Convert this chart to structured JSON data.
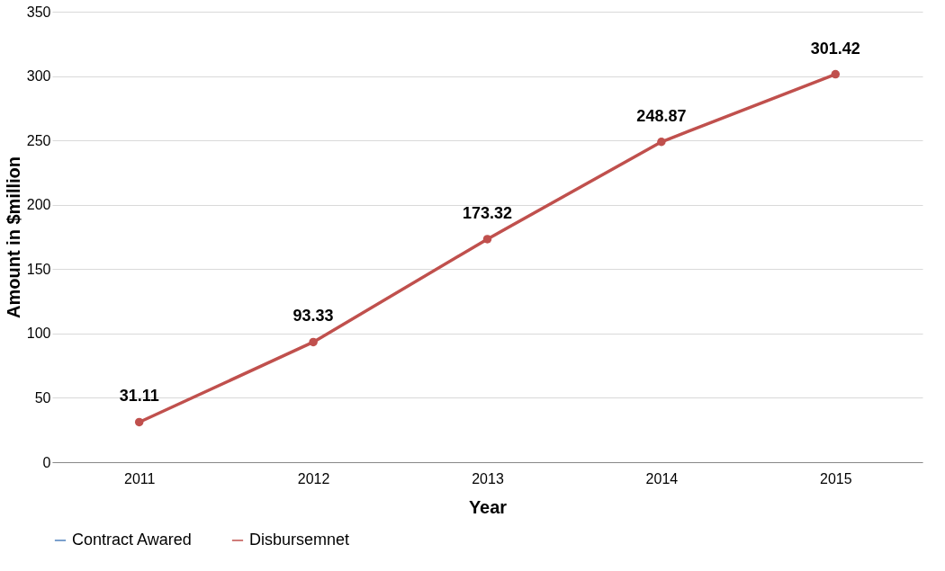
{
  "chart_data": {
    "type": "line",
    "xlabel": "Year",
    "ylabel": "Amount in $million",
    "categories": [
      "2011",
      "2012",
      "2013",
      "2014",
      "2015"
    ],
    "series": [
      {
        "name": "Contract Awared",
        "color": "#4f81bd",
        "values": [
          null,
          null,
          null,
          null,
          null
        ]
      },
      {
        "name": "Disbursemnet",
        "color": "#c0504d",
        "values": [
          31.11,
          93.33,
          173.32,
          248.87,
          301.42
        ]
      }
    ],
    "ylim": [
      0,
      350
    ],
    "yticks": [
      0,
      50,
      100,
      150,
      200,
      250,
      300,
      350
    ],
    "grid": "y",
    "legend": "bottom",
    "marker": "circle",
    "line_style": "solid",
    "data_labels": true
  }
}
